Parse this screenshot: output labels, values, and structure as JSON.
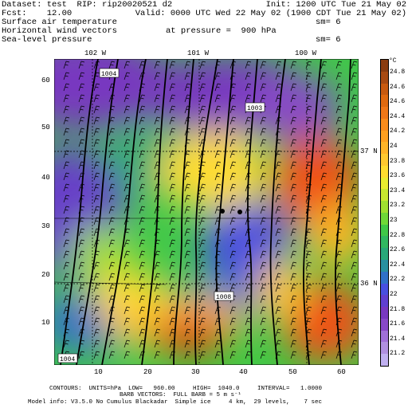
{
  "header": {
    "dataset": "Dataset: test  RIP: rip20020521 d2",
    "init": "Init: 1200 UTC Tue 21 May 02",
    "fcst": "Fcst:    12.00",
    "valid": "Valid: 0000 UTC Wed 22 May 02 (1900 CDT Tue 21 May 02)",
    "field1": "Surface air temperature",
    "sm1": "sm= 6",
    "field2": "Horizontal wind vectors",
    "pressure": "at pressure =  900 hPa",
    "field3": "Sea-level pressure",
    "sm2": "sm= 6"
  },
  "map": {
    "lon_labels": [
      "102 W",
      "101 W",
      "100 W"
    ],
    "lat_labels": [
      "37 N",
      "36 N"
    ],
    "x_ticks": [
      "10",
      "20",
      "30",
      "40",
      "50",
      "60"
    ],
    "y_ticks": [
      "60",
      "50",
      "40",
      "30",
      "20",
      "10"
    ],
    "isobar_labels": [
      "1004",
      "1003",
      "1008",
      "1004"
    ],
    "isobar_color": "#000000"
  },
  "colorbar": {
    "unit": "°C",
    "labels": [
      "24.8",
      "24.6",
      "24.6",
      "24.4",
      "24.2",
      "24",
      "23.8",
      "23.6",
      "23.4",
      "23.2",
      "23",
      "22.8",
      "22.6",
      "22.4",
      "22.2",
      "22",
      "21.8",
      "21.6",
      "21.4",
      "21.2"
    ],
    "colors": [
      "#8a3c10",
      "#a84a12",
      "#c85a10",
      "#e06a10",
      "#f07818",
      "#fa8c1c",
      "#ffa020",
      "#ffb428",
      "#ffc830",
      "#ffdc30",
      "#e8ec30",
      "#c8e830",
      "#a0e030",
      "#70d838",
      "#40c848",
      "#30b860",
      "#28a878",
      "#2890a0",
      "#3070c8",
      "#4850e0",
      "#6040d0",
      "#7838c0",
      "#8848c8",
      "#a070d8",
      "#b090e0",
      "#c0b0f0"
    ]
  },
  "footer": {
    "contours": "CONTOURS:  UNITS=hPa  LOW=   960.00     HIGH=  1040.0     INTERVAL=   1.0000",
    "barb": "BARB VECTORS:  FULL BARB = 5 m s⁻¹",
    "model": "Model info: V3.5.0 No Cumulus Blackadar  Simple ice     4 km,  29 levels,    7 sec"
  }
}
